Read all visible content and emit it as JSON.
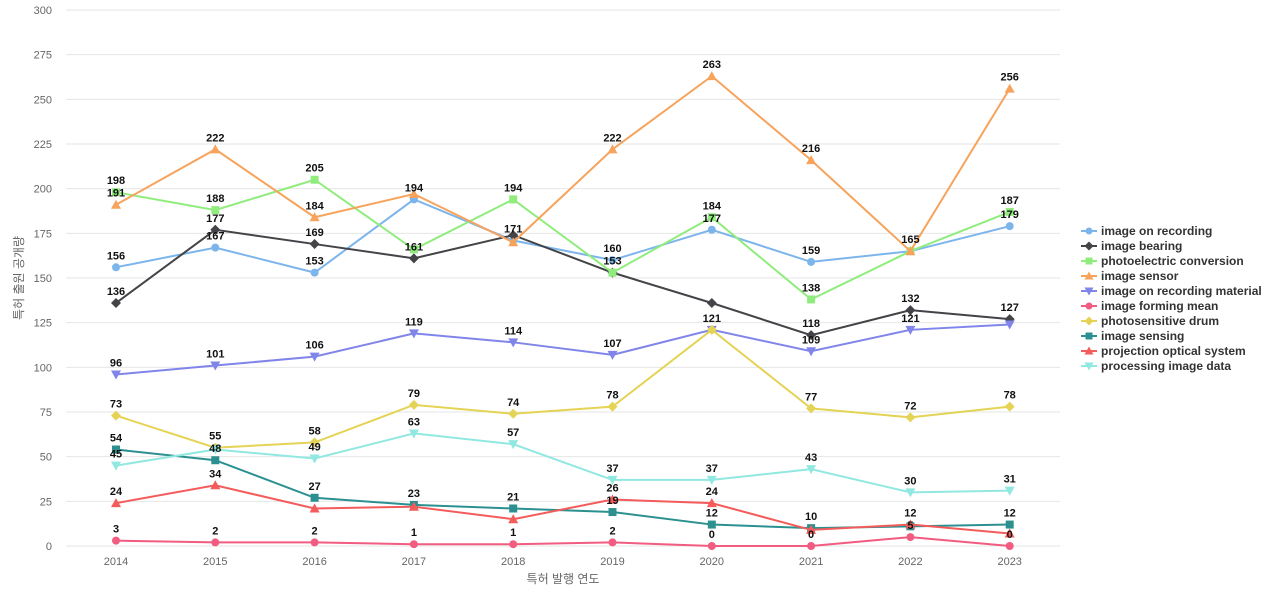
{
  "chart_data": {
    "type": "line",
    "title": "",
    "xlabel": "특허 발행 연도",
    "ylabel": "특허 출원 공개량",
    "ylim": [
      0,
      300
    ],
    "yticks": [
      0,
      25,
      50,
      75,
      100,
      125,
      150,
      175,
      200,
      225,
      250,
      275,
      300
    ],
    "x": [
      "2014",
      "2015",
      "2016",
      "2017",
      "2018",
      "2019",
      "2020",
      "2021",
      "2022",
      "2023"
    ],
    "grid": true,
    "legend_position": "right",
    "series": [
      {
        "name": "image on recording",
        "color": "#7cb5ec",
        "marker": "circle",
        "values": [
          156,
          167,
          153,
          194,
          171,
          160,
          177,
          159,
          165,
          179
        ]
      },
      {
        "name": "image bearing",
        "color": "#434348",
        "marker": "diamond",
        "values": [
          136,
          177,
          169,
          161,
          174,
          153,
          136,
          118,
          132,
          127
        ]
      },
      {
        "name": "photoelectric conversion",
        "color": "#90ed7d",
        "marker": "square",
        "values": [
          198,
          188,
          205,
          166,
          194,
          153,
          184,
          138,
          165,
          187
        ]
      },
      {
        "name": "image sensor",
        "color": "#f7a35c",
        "marker": "triangle",
        "values": [
          191,
          222,
          184,
          197,
          170,
          222,
          263,
          216,
          165,
          256
        ]
      },
      {
        "name": "image on recording material",
        "color": "#8085e9",
        "marker": "triangle-down",
        "values": [
          96,
          101,
          106,
          119,
          114,
          107,
          121,
          109,
          121,
          124
        ]
      },
      {
        "name": "image forming mean",
        "color": "#f15c80",
        "marker": "circle",
        "values": [
          3,
          2,
          2,
          1,
          1,
          2,
          0,
          0,
          5,
          0
        ]
      },
      {
        "name": "photosensitive drum",
        "color": "#e4d354",
        "marker": "diamond",
        "values": [
          73,
          55,
          58,
          79,
          74,
          78,
          121,
          77,
          72,
          78
        ]
      },
      {
        "name": "image sensing",
        "color": "#2b908f",
        "marker": "square",
        "values": [
          54,
          48,
          27,
          23,
          21,
          19,
          12,
          10,
          11,
          12
        ]
      },
      {
        "name": "projection optical system",
        "color": "#f45b5b",
        "marker": "triangle",
        "values": [
          24,
          34,
          21,
          22,
          15,
          26,
          24,
          9,
          12,
          7
        ]
      },
      {
        "name": "processing image data",
        "color": "#91e8e1",
        "marker": "triangle-down",
        "values": [
          45,
          54,
          49,
          63,
          57,
          37,
          37,
          43,
          30,
          31
        ]
      }
    ],
    "data_labels": [
      {
        "text": "156",
        "x": "2014",
        "y": 156
      },
      {
        "text": "167",
        "x": "2015",
        "y": 167
      },
      {
        "text": "153",
        "x": "2016",
        "y": 153
      },
      {
        "text": "194",
        "x": "2017",
        "y": 194
      },
      {
        "text": "171",
        "x": "2018",
        "y": 171
      },
      {
        "text": "160",
        "x": "2019",
        "y": 160
      },
      {
        "text": "177",
        "x": "2020",
        "y": 177
      },
      {
        "text": "159",
        "x": "2021",
        "y": 159
      },
      {
        "text": "165",
        "x": "2022",
        "y": 165
      },
      {
        "text": "179",
        "x": "2023",
        "y": 179
      },
      {
        "text": "136",
        "x": "2014",
        "y": 136
      },
      {
        "text": "177",
        "x": "2015",
        "y": 177
      },
      {
        "text": "169",
        "x": "2016",
        "y": 169
      },
      {
        "text": "118",
        "x": "2021",
        "y": 118
      },
      {
        "text": "132",
        "x": "2022",
        "y": 132
      },
      {
        "text": "127",
        "x": "2023",
        "y": 127
      },
      {
        "text": "198",
        "x": "2014",
        "y": 198
      },
      {
        "text": "188",
        "x": "2015",
        "y": 188
      },
      {
        "text": "205",
        "x": "2016",
        "y": 205
      },
      {
        "text": "161",
        "x": "2017",
        "y": 161
      },
      {
        "text": "194",
        "x": "2018",
        "y": 194
      },
      {
        "text": "153",
        "x": "2019",
        "y": 153
      },
      {
        "text": "184",
        "x": "2020",
        "y": 184
      },
      {
        "text": "138",
        "x": "2021",
        "y": 138
      },
      {
        "text": "187",
        "x": "2023",
        "y": 187
      },
      {
        "text": "191",
        "x": "2014",
        "y": 191
      },
      {
        "text": "222",
        "x": "2015",
        "y": 222
      },
      {
        "text": "184",
        "x": "2016",
        "y": 184
      },
      {
        "text": "222",
        "x": "2019",
        "y": 222
      },
      {
        "text": "263",
        "x": "2020",
        "y": 263
      },
      {
        "text": "216",
        "x": "2021",
        "y": 216
      },
      {
        "text": "256",
        "x": "2023",
        "y": 256
      },
      {
        "text": "96",
        "x": "2014",
        "y": 96
      },
      {
        "text": "101",
        "x": "2015",
        "y": 101
      },
      {
        "text": "106",
        "x": "2016",
        "y": 106
      },
      {
        "text": "119",
        "x": "2017",
        "y": 119
      },
      {
        "text": "114",
        "x": "2018",
        "y": 114
      },
      {
        "text": "107",
        "x": "2019",
        "y": 107
      },
      {
        "text": "121",
        "x": "2020",
        "y": 121
      },
      {
        "text": "109",
        "x": "2021",
        "y": 109
      },
      {
        "text": "121",
        "x": "2022",
        "y": 121
      },
      {
        "text": "3",
        "x": "2014",
        "y": 3
      },
      {
        "text": "2",
        "x": "2015",
        "y": 2
      },
      {
        "text": "2",
        "x": "2016",
        "y": 2
      },
      {
        "text": "1",
        "x": "2017",
        "y": 1
      },
      {
        "text": "1",
        "x": "2018",
        "y": 1
      },
      {
        "text": "2",
        "x": "2019",
        "y": 2
      },
      {
        "text": "0",
        "x": "2020",
        "y": 0
      },
      {
        "text": "0",
        "x": "2021",
        "y": 0
      },
      {
        "text": "5",
        "x": "2022",
        "y": 5
      },
      {
        "text": "0",
        "x": "2023",
        "y": 0
      },
      {
        "text": "73",
        "x": "2014",
        "y": 73
      },
      {
        "text": "55",
        "x": "2015",
        "y": 55
      },
      {
        "text": "58",
        "x": "2016",
        "y": 58
      },
      {
        "text": "79",
        "x": "2017",
        "y": 79
      },
      {
        "text": "74",
        "x": "2018",
        "y": 74
      },
      {
        "text": "78",
        "x": "2019",
        "y": 78
      },
      {
        "text": "77",
        "x": "2021",
        "y": 77
      },
      {
        "text": "72",
        "x": "2022",
        "y": 72
      },
      {
        "text": "78",
        "x": "2023",
        "y": 78
      },
      {
        "text": "54",
        "x": "2014",
        "y": 54
      },
      {
        "text": "48",
        "x": "2015",
        "y": 48
      },
      {
        "text": "27",
        "x": "2016",
        "y": 27
      },
      {
        "text": "23",
        "x": "2017",
        "y": 23
      },
      {
        "text": "21",
        "x": "2018",
        "y": 21
      },
      {
        "text": "19",
        "x": "2019",
        "y": 19
      },
      {
        "text": "12",
        "x": "2020",
        "y": 12
      },
      {
        "text": "10",
        "x": "2021",
        "y": 10
      },
      {
        "text": "12",
        "x": "2022",
        "y": 12
      },
      {
        "text": "12",
        "x": "2023",
        "y": 12
      },
      {
        "text": "24",
        "x": "2014",
        "y": 24
      },
      {
        "text": "34",
        "x": "2015",
        "y": 34
      },
      {
        "text": "26",
        "x": "2019",
        "y": 26
      },
      {
        "text": "24",
        "x": "2020",
        "y": 24
      },
      {
        "text": "45",
        "x": "2014",
        "y": 45
      },
      {
        "text": "49",
        "x": "2016",
        "y": 49
      },
      {
        "text": "63",
        "x": "2017",
        "y": 63
      },
      {
        "text": "57",
        "x": "2018",
        "y": 57
      },
      {
        "text": "37",
        "x": "2019",
        "y": 37
      },
      {
        "text": "37",
        "x": "2020",
        "y": 37
      },
      {
        "text": "43",
        "x": "2021",
        "y": 43
      },
      {
        "text": "30",
        "x": "2022",
        "y": 30
      },
      {
        "text": "31",
        "x": "2023",
        "y": 31
      }
    ]
  }
}
